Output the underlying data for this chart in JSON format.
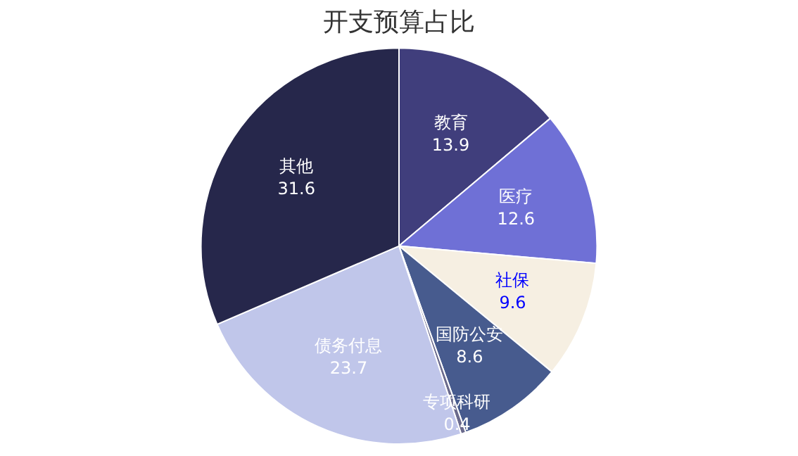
{
  "chart_data": {
    "type": "pie",
    "title": "开支预算占比",
    "categories": [
      "教育",
      "医疗",
      "社保",
      "国防公安",
      "专项科研",
      "债务付息",
      "其他"
    ],
    "values": [
      13.9,
      12.6,
      9.6,
      8.6,
      0.4,
      23.7,
      31.6
    ],
    "colors": [
      "#403e7c",
      "#6f70d6",
      "#f6efe2",
      "#475b8e",
      "#6a6a8c",
      "#c0c6ea",
      "#26274b"
    ],
    "data_labels": true,
    "legend": false
  }
}
